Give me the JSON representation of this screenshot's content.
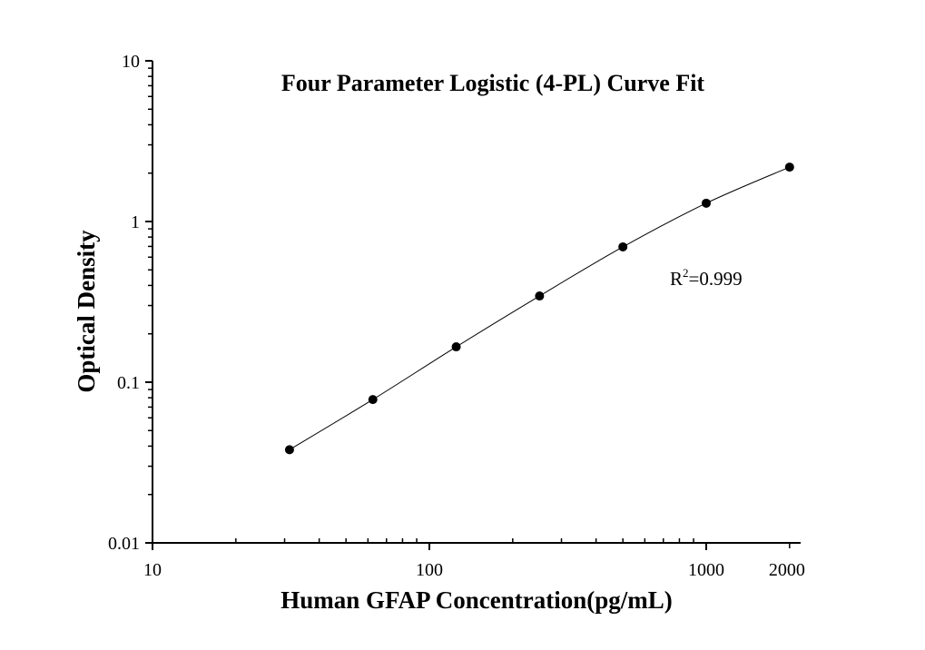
{
  "chart_data": {
    "type": "scatter",
    "title": "Four Parameter Logistic (4-PL) Curve Fit",
    "xlabel": "Human GFAP Concentration(pg/mL)",
    "ylabel": "Optical Density",
    "x_scale": "log",
    "y_scale": "log",
    "xlim": [
      10,
      2200
    ],
    "ylim": [
      0.01,
      10
    ],
    "x_tick_labels": [
      "10",
      "100",
      "1000",
      "2000"
    ],
    "x_ticks": [
      10,
      100,
      1000,
      2000
    ],
    "y_tick_labels": [
      "0.01",
      "0.1",
      "1",
      "10"
    ],
    "y_ticks": [
      0.01,
      0.1,
      1,
      10
    ],
    "grid": false,
    "annotation": {
      "base": "R",
      "superscript": "2",
      "text": "=0.999"
    },
    "fit": "4-PL curve",
    "color": "#000000",
    "series": [
      {
        "x": [
          31.25,
          62.5,
          125,
          250,
          500,
          1000,
          2000
        ],
        "y": [
          0.038,
          0.078,
          0.166,
          0.344,
          0.695,
          1.3,
          2.18
        ]
      }
    ]
  }
}
